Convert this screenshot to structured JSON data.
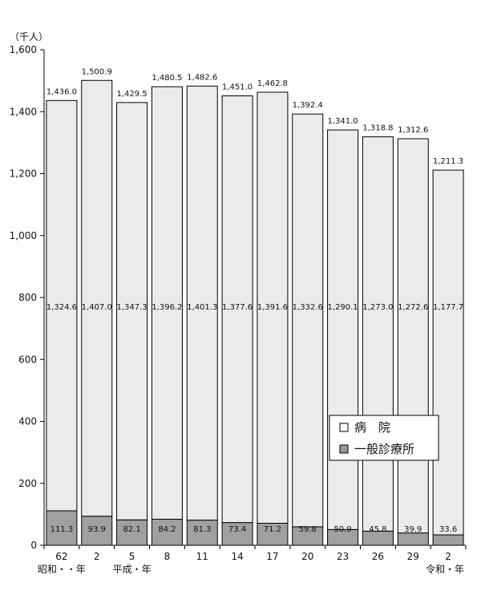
{
  "chart_data": {
    "type": "bar",
    "stacked": true,
    "unit_label": "（千人）",
    "y_ticks": [
      "0",
      "200",
      "400",
      "600",
      "800",
      "1,000",
      "1,200",
      "1,400",
      "1,600"
    ],
    "ylim": [
      0,
      1600
    ],
    "categories": [
      "62",
      "2",
      "5",
      "8",
      "11",
      "14",
      "17",
      "20",
      "23",
      "26",
      "29",
      "2"
    ],
    "era_labels": [
      {
        "text": "昭和・・年",
        "category_index": 0
      },
      {
        "text": "平成・年",
        "category_index": 2
      },
      {
        "text": "令和・年",
        "category_index": 11
      }
    ],
    "series": [
      {
        "name": "一般診療所",
        "color": "#a0a0a0",
        "values": [
          111.3,
          93.9,
          82.1,
          84.2,
          81.3,
          73.4,
          71.2,
          59.8,
          50.9,
          45.8,
          39.9,
          33.6
        ],
        "labels": [
          "111.3",
          "93.9",
          "82.1",
          "84.2",
          "81.3",
          "73.4",
          "71.2",
          "59.8",
          "50.9",
          "45.8",
          "39.9",
          "33.6"
        ]
      },
      {
        "name": "病　院",
        "color": "#ebebeb",
        "values": [
          1324.6,
          1407.0,
          1347.3,
          1396.2,
          1401.3,
          1377.6,
          1391.6,
          1332.6,
          1290.1,
          1273.0,
          1272.6,
          1177.7
        ],
        "labels": [
          "1,324.6",
          "1,407.0",
          "1,347.3",
          "1,396.2",
          "1,401.3",
          "1,377.6",
          "1,391.6",
          "1,332.6",
          "1,290.1",
          "1,273.0",
          "1,272.6",
          "1,177.7"
        ]
      }
    ],
    "totals": [
      1436.0,
      1500.9,
      1429.5,
      1480.5,
      1482.6,
      1451.0,
      1462.8,
      1392.4,
      1341.0,
      1318.8,
      1312.6,
      1211.3
    ],
    "total_labels": [
      "1,436.0",
      "1,500.9",
      "1,429.5",
      "1,480.5",
      "1,482.6",
      "1,451.0",
      "1,462.8",
      "1,392.4",
      "1,341.0",
      "1,318.8",
      "1,312.6",
      "1,211.3"
    ],
    "legend": {
      "placement": "bottom-right",
      "items": [
        {
          "label": "病　院",
          "swatch": "#ffffff"
        },
        {
          "label": "一般診療所",
          "swatch": "#999999"
        }
      ]
    }
  }
}
